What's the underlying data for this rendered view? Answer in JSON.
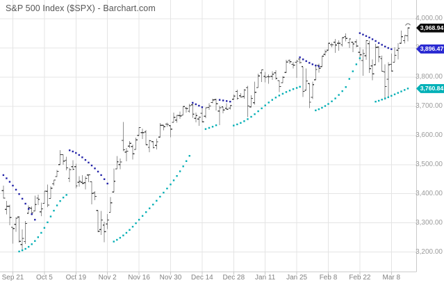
{
  "title": "S&P 500 Index ($SPX) - Barchart.com",
  "colors": {
    "background": "#ffffff",
    "grid": "#e4e4e4",
    "axis_line": "#c9c9c9",
    "bar_range": "#8f8f8f",
    "bar_tick": "#3a3a3a",
    "sar_navy_dot": "#2222a8",
    "sar_teal_dot": "#00aeb4",
    "badge_last": "#0b0b0b",
    "badge_navy": "#2b2bd2",
    "badge_teal": "#00b1b7",
    "title_text": "#565656",
    "y_label_text": "#9a9a9a",
    "x_label_text": "#828282"
  },
  "chart_data": {
    "type": "ohlc",
    "symbol": "$SPX",
    "description": "S&P 500 Index daily OHLC bars with two parabolic-SAR dotted overlays (navy above-price series, teal below-price series)",
    "start_date": "2020-09-16",
    "end_date": "2021-03-15",
    "x_axis": {
      "labels": [
        "Sep 21",
        "Oct 5",
        "Oct 19",
        "Nov 2",
        "Nov 16",
        "Nov 30",
        "Dec 14",
        "Dec 28",
        "Jan 11",
        "Jan 25",
        "Feb 8",
        "Feb 22",
        "Mar 8"
      ],
      "anchor_bar_indices": [
        3,
        13,
        23,
        33,
        43,
        52,
        62,
        71,
        80,
        89,
        99,
        108,
        118
      ]
    },
    "y_axis": {
      "tick_labels": [
        "4,000.00",
        "3,900.00",
        "3,800.00",
        "3,700.00",
        "3,600.00",
        "3,500.00",
        "3,400.00",
        "3,300.00",
        "3,200.00"
      ],
      "tick_values": [
        4000,
        3900,
        3800,
        3700,
        3600,
        3500,
        3400,
        3300,
        3200
      ],
      "top_value": 4000,
      "bottom_value": 3200,
      "grid": true,
      "position": "right"
    },
    "badges": [
      {
        "text": "3,968.94",
        "value": 3968.94,
        "role": "last-price",
        "bg": "#0b0b0b"
      },
      {
        "text": "3,896.47",
        "value": 3896.47,
        "role": "sar-navy-last",
        "bg": "#2b2bd2"
      },
      {
        "text": "3,760.84",
        "value": 3760.84,
        "role": "sar-teal-last",
        "bg": "#00b1b7"
      }
    ],
    "bars_format": [
      "open",
      "high",
      "low",
      "close"
    ],
    "bars": [
      [
        3411,
        3428,
        3384,
        3385
      ],
      [
        3346,
        3375,
        3329,
        3357
      ],
      [
        3357,
        3362,
        3292,
        3319
      ],
      [
        3285,
        3285,
        3229,
        3281
      ],
      [
        3295,
        3320,
        3270,
        3316
      ],
      [
        3320,
        3323,
        3232,
        3237
      ],
      [
        3226,
        3278,
        3209,
        3247
      ],
      [
        3236,
        3306,
        3228,
        3298
      ],
      [
        3333,
        3360,
        3332,
        3352
      ],
      [
        3350,
        3357,
        3327,
        3335
      ],
      [
        3341,
        3393,
        3340,
        3363
      ],
      [
        3385,
        3397,
        3361,
        3381
      ],
      [
        3338,
        3369,
        3323,
        3348
      ],
      [
        3367,
        3409,
        3367,
        3409
      ],
      [
        3408,
        3431,
        3354,
        3361
      ],
      [
        3384,
        3426,
        3384,
        3419
      ],
      [
        3434,
        3447,
        3428,
        3447
      ],
      [
        3459,
        3482,
        3458,
        3477
      ],
      [
        3500,
        3550,
        3499,
        3534
      ],
      [
        3534,
        3534,
        3500,
        3512
      ],
      [
        3515,
        3527,
        3480,
        3489
      ],
      [
        3453,
        3489,
        3440,
        3483
      ],
      [
        3493,
        3515,
        3480,
        3484
      ],
      [
        3493,
        3503,
        3419,
        3427
      ],
      [
        3439,
        3460,
        3424,
        3443
      ],
      [
        3439,
        3464,
        3433,
        3436
      ],
      [
        3438,
        3460,
        3415,
        3453
      ],
      [
        3464,
        3466,
        3440,
        3465
      ],
      [
        3441,
        3442,
        3364,
        3401
      ],
      [
        3403,
        3409,
        3378,
        3391
      ],
      [
        3343,
        3343,
        3268,
        3271
      ],
      [
        3277,
        3341,
        3259,
        3310
      ],
      [
        3293,
        3304,
        3234,
        3270
      ],
      [
        3296,
        3330,
        3279,
        3310
      ],
      [
        3336,
        3389,
        3336,
        3369
      ],
      [
        3406,
        3486,
        3405,
        3443
      ],
      [
        3485,
        3529,
        3485,
        3510
      ],
      [
        3500,
        3521,
        3484,
        3509
      ],
      [
        3583,
        3646,
        3546,
        3551
      ],
      [
        3543,
        3557,
        3511,
        3546
      ],
      [
        3563,
        3581,
        3557,
        3573
      ],
      [
        3562,
        3569,
        3518,
        3537
      ],
      [
        3552,
        3593,
        3552,
        3585
      ],
      [
        3600,
        3628,
        3600,
        3627
      ],
      [
        3610,
        3623,
        3588,
        3610
      ],
      [
        3612,
        3619,
        3567,
        3568
      ],
      [
        3559,
        3585,
        3543,
        3582
      ],
      [
        3579,
        3581,
        3556,
        3558
      ],
      [
        3566,
        3589,
        3552,
        3578
      ],
      [
        3594,
        3643,
        3594,
        3635
      ],
      [
        3635,
        3635,
        3617,
        3630
      ],
      [
        3639,
        3644,
        3629,
        3638
      ],
      [
        3634,
        3634,
        3594,
        3622
      ],
      [
        3645,
        3678,
        3645,
        3662
      ],
      [
        3653,
        3670,
        3644,
        3669
      ],
      [
        3668,
        3682,
        3657,
        3667
      ],
      [
        3670,
        3700,
        3670,
        3699
      ],
      [
        3694,
        3697,
        3678,
        3692
      ],
      [
        3683,
        3708,
        3678,
        3702
      ],
      [
        3705,
        3712,
        3660,
        3673
      ],
      [
        3659,
        3678,
        3645,
        3668
      ],
      [
        3656,
        3665,
        3633,
        3663
      ],
      [
        3676,
        3697,
        3645,
        3647
      ],
      [
        3666,
        3695,
        3659,
        3695
      ],
      [
        3696,
        3711,
        3688,
        3701
      ],
      [
        3713,
        3726,
        3710,
        3722
      ],
      [
        3723,
        3726,
        3685,
        3709
      ],
      [
        3684,
        3702,
        3636,
        3695
      ],
      [
        3698,
        3698,
        3676,
        3687
      ],
      [
        3693,
        3711,
        3689,
        3690
      ],
      [
        3694,
        3703,
        3689,
        3703
      ],
      [
        3724,
        3740,
        3723,
        3735
      ],
      [
        3751,
        3757,
        3723,
        3727
      ],
      [
        3736,
        3745,
        3730,
        3732
      ],
      [
        3734,
        3760,
        3726,
        3756
      ],
      [
        3764,
        3770,
        3663,
        3701
      ],
      [
        3698,
        3738,
        3696,
        3727
      ],
      [
        3712,
        3784,
        3706,
        3748
      ],
      [
        3764,
        3812,
        3764,
        3804
      ],
      [
        3815,
        3826,
        3783,
        3825
      ],
      [
        3803,
        3818,
        3782,
        3800
      ],
      [
        3802,
        3810,
        3777,
        3801
      ],
      [
        3803,
        3820,
        3791,
        3810
      ],
      [
        3815,
        3824,
        3792,
        3796
      ],
      [
        3788,
        3788,
        3749,
        3768
      ],
      [
        3781,
        3804,
        3780,
        3799
      ],
      [
        3816,
        3860,
        3816,
        3852
      ],
      [
        3857,
        3861,
        3845,
        3853
      ],
      [
        3844,
        3852,
        3830,
        3841
      ],
      [
        3851,
        3859,
        3797,
        3855
      ],
      [
        3862,
        3870,
        3847,
        3850
      ],
      [
        3836,
        3836,
        3732,
        3751
      ],
      [
        3755,
        3830,
        3755,
        3787
      ],
      [
        3778,
        3778,
        3694,
        3714
      ],
      [
        3731,
        3784,
        3725,
        3774
      ],
      [
        3791,
        3843,
        3791,
        3826
      ],
      [
        3840,
        3847,
        3816,
        3830
      ],
      [
        3836,
        3872,
        3836,
        3872
      ],
      [
        3878,
        3894,
        3874,
        3887
      ],
      [
        3892,
        3916,
        3892,
        3916
      ],
      [
        3911,
        3918,
        3902,
        3911
      ],
      [
        3920,
        3931,
        3884,
        3910
      ],
      [
        3916,
        3926,
        3890,
        3916
      ],
      [
        3911,
        3935,
        3905,
        3935
      ],
      [
        3939,
        3950,
        3923,
        3933
      ],
      [
        3918,
        3934,
        3900,
        3931
      ],
      [
        3920,
        3922,
        3886,
        3914
      ],
      [
        3921,
        3930,
        3903,
        3907
      ],
      [
        3885,
        3902,
        3856,
        3877
      ],
      [
        3857,
        3895,
        3805,
        3881
      ],
      [
        3873,
        3928,
        3859,
        3925
      ],
      [
        3915,
        3925,
        3814,
        3829
      ],
      [
        3839,
        3861,
        3789,
        3811
      ],
      [
        3842,
        3914,
        3842,
        3902
      ],
      [
        3903,
        3906,
        3851,
        3870
      ],
      [
        3863,
        3874,
        3819,
        3820
      ],
      [
        3818,
        3844,
        3723,
        3768
      ],
      [
        3793,
        3851,
        3731,
        3842
      ],
      [
        3844,
        3881,
        3819,
        3821
      ],
      [
        3851,
        3903,
        3851,
        3875
      ],
      [
        3892,
        3917,
        3861,
        3899
      ],
      [
        3916,
        3960,
        3915,
        3939
      ],
      [
        3925,
        3944,
        3915,
        3943
      ],
      [
        3942,
        3970,
        3923,
        3969
      ]
    ],
    "sar": {
      "navy": {
        "color": "#2222a8",
        "last_value": 3896.47,
        "segments": [
          {
            "start": 0,
            "values": [
              3464,
              3453,
              3441,
              3428,
              3414,
              3399,
              3383,
              3366,
              3348,
              3330,
              3311
            ]
          },
          {
            "start": 21,
            "values": [
              3549,
              3545,
              3540,
              3533,
              3525,
              3516,
              3507,
              3497,
              3487,
              3476,
              3464,
              3450,
              3435
            ]
          },
          {
            "start": 59,
            "values": [
              3712,
              3707,
              3702,
              3697
            ]
          },
          {
            "start": 67,
            "values": [
              3722,
              3720,
              3718,
              3716
            ]
          },
          {
            "start": 90,
            "values": [
              3868,
              3861,
              3855,
              3849,
              3844,
              3840,
              3837
            ]
          },
          {
            "start": 108,
            "values": [
              3951,
              3946,
              3941,
              3936,
              3930,
              3924,
              3917,
              3911,
              3905,
              3900,
              3896
            ]
          }
        ]
      },
      "teal": {
        "color": "#00aeb4",
        "last_value": 3760.84,
        "segments": [
          {
            "start": 5,
            "values": [
              3202,
              3206,
              3211,
              3218,
              3227,
              3238,
              3251,
              3266,
              3283,
              3302,
              3322,
              3342,
              3360,
              3375,
              3387,
              3396
            ]
          },
          {
            "start": 35,
            "values": [
              3236,
              3242,
              3249,
              3257,
              3266,
              3276,
              3287,
              3299,
              3311,
              3324,
              3337,
              3350,
              3363,
              3376,
              3390,
              3404,
              3418,
              3432,
              3446,
              3461,
              3477,
              3494,
              3512,
              3530
            ]
          },
          {
            "start": 63,
            "values": [
              3622,
              3626,
              3630,
              3635
            ]
          },
          {
            "start": 71,
            "values": [
              3634,
              3638,
              3643,
              3649,
              3656,
              3664,
              3673,
              3683,
              3693,
              3703,
              3713,
              3722,
              3730,
              3737,
              3743,
              3749,
              3754,
              3759,
              3763,
              3767
            ]
          },
          {
            "start": 95,
            "values": [
              3686,
              3690,
              3695,
              3701,
              3708,
              3717,
              3727,
              3739,
              3752,
              3766,
              3794,
              3820,
              3844,
              3865
            ]
          },
          {
            "start": 113,
            "values": [
              3716,
              3719,
              3723,
              3727,
              3731,
              3736,
              3741,
              3746,
              3751,
              3756,
              3761
            ]
          }
        ]
      }
    }
  }
}
